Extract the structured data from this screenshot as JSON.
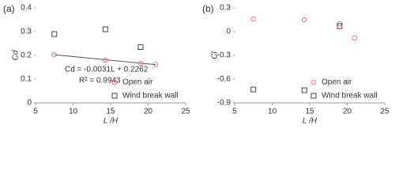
{
  "chart_data": [
    {
      "type": "scatter",
      "panel_label": "(a)",
      "y_label": "Cd",
      "x_label": "L /H",
      "xlim": [
        5,
        25
      ],
      "xticks": [
        5,
        10,
        15,
        20,
        25
      ],
      "ylim": [
        0,
        0.4
      ],
      "yticks": [
        0,
        0.1,
        0.2,
        0.3,
        0.4
      ],
      "series": [
        {
          "name": "Open air",
          "color": "#e8708c",
          "marker": "circle",
          "x": [
            7.5,
            14.3,
            19,
            21
          ],
          "values": [
            0.203,
            0.18,
            0.167,
            0.162
          ]
        },
        {
          "name": "Wind break wall",
          "color": "#444444",
          "marker": "square",
          "x": [
            7.5,
            14.3,
            19
          ],
          "values": [
            0.29,
            0.31,
            0.235
          ]
        }
      ],
      "trendline": {
        "slope": -0.0031,
        "intercept": 0.2262,
        "color": "#555555"
      },
      "annotations": [
        "Cd = -0.0031L + 0.2262",
        "R² = 0.9943"
      ],
      "legend": "bottom-right"
    },
    {
      "type": "scatter",
      "panel_label": "(b)",
      "y_label": "Cl",
      "x_label": "L /H",
      "xlim": [
        5,
        25
      ],
      "xticks": [
        5,
        10,
        15,
        20,
        25
      ],
      "ylim": [
        -0.9,
        0.3
      ],
      "yticks": [
        -0.9,
        -0.6,
        -0.3,
        0,
        0.3
      ],
      "series": [
        {
          "name": "Open air",
          "color": "#e8708c",
          "marker": "circle",
          "x": [
            7.5,
            14.3,
            19,
            21
          ],
          "values": [
            0.16,
            0.15,
            0.1,
            -0.08
          ]
        },
        {
          "name": "Wind break wall",
          "color": "#444444",
          "marker": "square",
          "x": [
            7.5,
            14.3,
            19
          ],
          "values": [
            -0.73,
            -0.74,
            0.07
          ]
        }
      ],
      "legend": "bottom-right"
    }
  ]
}
